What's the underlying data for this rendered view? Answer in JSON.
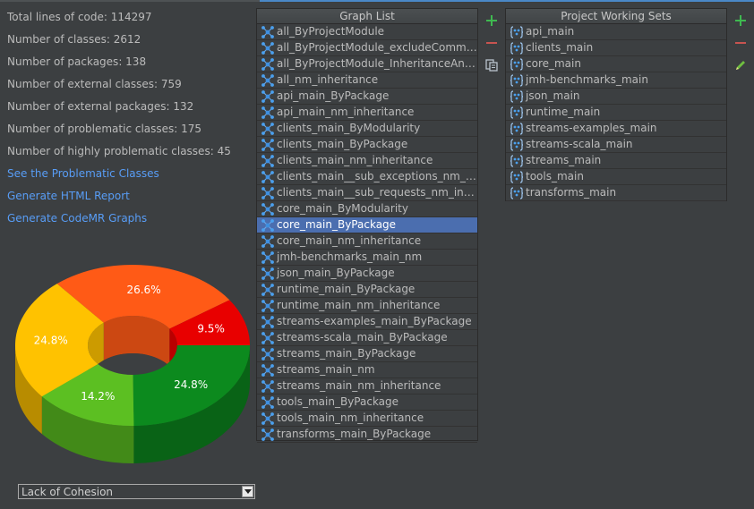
{
  "stats": [
    {
      "label": "Total lines of code: ",
      "value": "114297"
    },
    {
      "label": "Number of classes: ",
      "value": "2612"
    },
    {
      "label": "Number of packages: ",
      "value": "138"
    },
    {
      "label": "Number of external classes: ",
      "value": "759"
    },
    {
      "label": "Number of external packages: ",
      "value": "132"
    },
    {
      "label": "Number of problematic classes: ",
      "value": "175"
    },
    {
      "label": "Number of highly problematic classes: ",
      "value": "45"
    }
  ],
  "links": [
    "See the Problematic Classes",
    "Generate HTML Report",
    "Generate CodeMR Graphs"
  ],
  "chart_data": {
    "type": "pie",
    "style": "3d-donut",
    "slices": [
      {
        "label": "26.6%",
        "value": 26.6,
        "color": "#ff5a16"
      },
      {
        "label": "9.5%",
        "value": 9.5,
        "color": "#e80000"
      },
      {
        "label": "24.8%",
        "value": 24.8,
        "color": "#0c8a1e"
      },
      {
        "label": "14.2%",
        "value": 14.2,
        "color": "#5cbf22"
      },
      {
        "label": "24.8%",
        "value": 24.8,
        "color": "#ffc200"
      }
    ]
  },
  "metric_select": {
    "value": "Lack of Cohesion"
  },
  "graph_list": {
    "title": "Graph List",
    "selected_index": 12,
    "items": [
      "all_ByProjectModule",
      "all_ByProjectModule_excludeCommons",
      "all_ByProjectModule_InheritanceAndAt...",
      "all_nm_inheritance",
      "api_main_ByPackage",
      "api_main_nm_inheritance",
      "clients_main_ByModularity",
      "clients_main_ByPackage",
      "clients_main_nm_inheritance",
      "clients_main__sub_exceptions_nm_inhe...",
      "clients_main__sub_requests_nm_inherit...",
      "core_main_ByModularity",
      "core_main_ByPackage",
      "core_main_nm_inheritance",
      "jmh-benchmarks_main_nm",
      "json_main_ByPackage",
      "runtime_main_ByPackage",
      "runtime_main_nm_inheritance",
      "streams-examples_main_ByPackage",
      "streams-scala_main_ByPackage",
      "streams_main_ByPackage",
      "streams_main_nm",
      "streams_main_nm_inheritance",
      "tools_main_ByPackage",
      "tools_main_nm_inheritance",
      "transforms_main_ByPackage"
    ]
  },
  "working_sets": {
    "title": "Project Working Sets",
    "items": [
      "api_main",
      "clients_main",
      "core_main",
      "jmh-benchmarks_main",
      "json_main",
      "runtime_main",
      "streams-examples_main",
      "streams-scala_main",
      "streams_main",
      "tools_main",
      "transforms_main"
    ]
  },
  "toolbar_icons": {
    "graph_list": [
      "plus-icon",
      "minus-icon",
      "copy-icon"
    ],
    "working_sets": [
      "plus-icon",
      "minus-icon",
      "pencil-icon"
    ]
  },
  "colors": {
    "background": "#3c3f41",
    "link": "#589df6",
    "selection": "#4b6eaf",
    "plus": "#3fb950",
    "minus": "#c75450"
  }
}
